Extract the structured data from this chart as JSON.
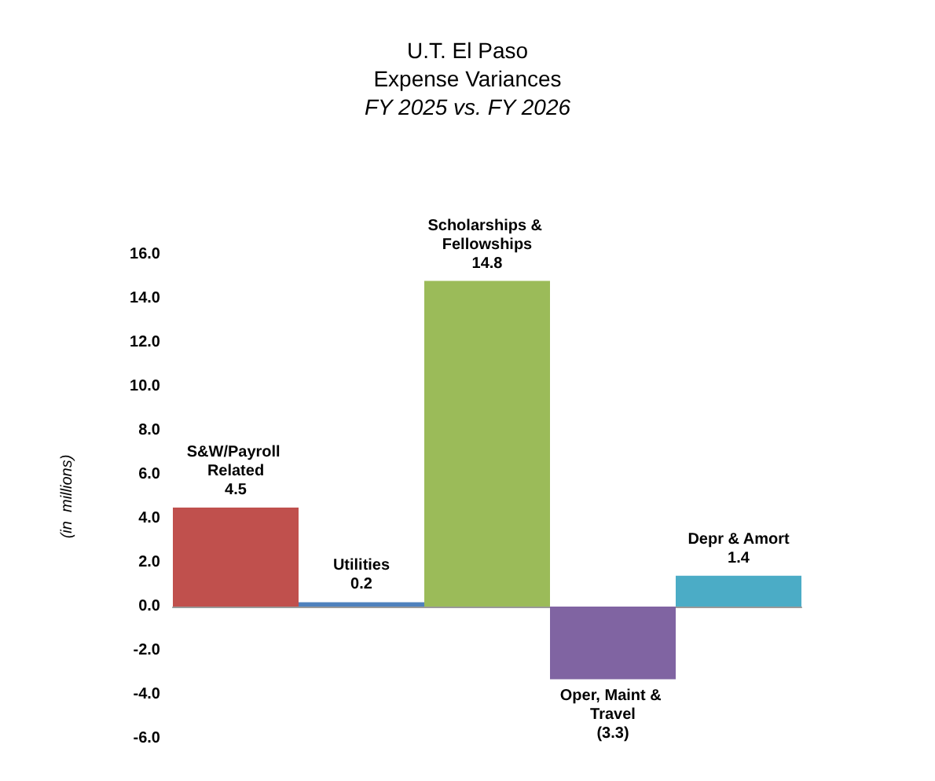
{
  "chart_data": {
    "type": "bar",
    "title": "U.T. El Paso\nExpense Variances",
    "subtitle": "FY 2025 vs. FY 2026",
    "ylabel": "(in  millions)",
    "categories": [
      "S&W/Payroll Related",
      "Utilities",
      "Scholarships & Fellowships",
      "Oper, Maint & Travel",
      "Depr & Amort"
    ],
    "values": [
      4.5,
      0.2,
      14.8,
      -3.3,
      1.4
    ],
    "colors": [
      "#c0504d",
      "#4f81bd",
      "#9bbb59",
      "#8064a2",
      "#4bacc6"
    ],
    "value_labels": [
      "4.5",
      "0.2",
      "14.8",
      "(3.3)",
      "1.4"
    ],
    "ylim": [
      -6,
      16
    ],
    "yticks": [
      {
        "value": -6,
        "label": "-6.0"
      },
      {
        "value": -4,
        "label": "-4.0"
      },
      {
        "value": -2,
        "label": "-2.0"
      },
      {
        "value": 0,
        "label": "0.0"
      },
      {
        "value": 2,
        "label": "2.0"
      },
      {
        "value": 4,
        "label": "4.0"
      },
      {
        "value": 6,
        "label": "6.0"
      },
      {
        "value": 8,
        "label": "8.0"
      },
      {
        "value": 10,
        "label": "10.0"
      },
      {
        "value": 12,
        "label": "12.0"
      },
      {
        "value": 14,
        "label": "14.0"
      },
      {
        "value": 16,
        "label": "16.0"
      }
    ],
    "tick_labels": "y"
  }
}
